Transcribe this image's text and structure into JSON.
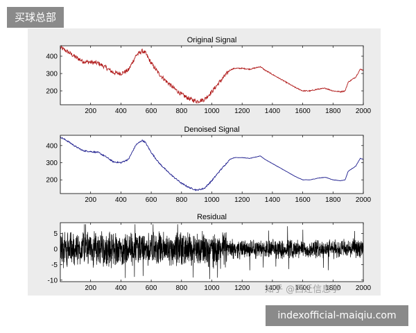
{
  "overlay": {
    "top_tag": "买球总部",
    "watermark": "知乎 @西迁信息学",
    "bottom_tag": "indexofficial-maiqiu.com"
  },
  "colors": {
    "original": "#b01818",
    "denoised": "#1a1a8c",
    "residual": "#000000",
    "figure_bg": "#ececec"
  },
  "chart_data": [
    {
      "type": "line",
      "title": "Original Signal",
      "xlim": [
        0,
        2000
      ],
      "ylim": [
        120,
        460
      ],
      "xticks": [
        200,
        400,
        600,
        800,
        1000,
        1200,
        1400,
        1600,
        1800,
        2000
      ],
      "yticks": [
        200,
        300,
        400
      ],
      "series": [
        {
          "color": "#b01818",
          "noise": 12,
          "x": [
            0,
            50,
            100,
            150,
            200,
            250,
            300,
            350,
            400,
            450,
            500,
            540,
            560,
            600,
            650,
            700,
            750,
            800,
            850,
            900,
            950,
            1000,
            1050,
            1100,
            1120,
            1150,
            1200,
            1250,
            1300,
            1320,
            1350,
            1400,
            1450,
            1500,
            1550,
            1600,
            1650,
            1700,
            1750,
            1800,
            1850,
            1880,
            1900,
            1950,
            1980,
            2000
          ],
          "y": [
            450,
            425,
            395,
            370,
            365,
            360,
            335,
            305,
            300,
            320,
            405,
            430,
            420,
            360,
            300,
            255,
            215,
            180,
            155,
            140,
            150,
            195,
            250,
            300,
            320,
            330,
            330,
            325,
            335,
            340,
            320,
            295,
            270,
            245,
            220,
            200,
            200,
            210,
            215,
            200,
            195,
            200,
            250,
            280,
            325,
            320
          ]
        }
      ]
    },
    {
      "type": "line",
      "title": "Denoised Signal",
      "xlim": [
        0,
        2000
      ],
      "ylim": [
        120,
        460
      ],
      "xticks": [
        200,
        400,
        600,
        800,
        1000,
        1200,
        1400,
        1600,
        1800,
        2000
      ],
      "yticks": [
        200,
        300,
        400
      ],
      "series": [
        {
          "color": "#1a1a8c",
          "noise": 4,
          "x": [
            0,
            50,
            100,
            150,
            200,
            250,
            300,
            350,
            400,
            450,
            500,
            540,
            560,
            600,
            650,
            700,
            750,
            800,
            850,
            900,
            950,
            1000,
            1050,
            1100,
            1120,
            1150,
            1200,
            1250,
            1300,
            1320,
            1350,
            1400,
            1450,
            1500,
            1550,
            1600,
            1650,
            1700,
            1750,
            1800,
            1850,
            1880,
            1900,
            1950,
            1980,
            2000
          ],
          "y": [
            450,
            425,
            395,
            370,
            365,
            360,
            335,
            305,
            300,
            320,
            405,
            430,
            420,
            360,
            300,
            255,
            215,
            180,
            155,
            140,
            150,
            195,
            250,
            300,
            320,
            330,
            330,
            325,
            335,
            340,
            320,
            295,
            270,
            245,
            220,
            200,
            200,
            210,
            215,
            200,
            195,
            200,
            250,
            280,
            325,
            320
          ]
        }
      ]
    },
    {
      "type": "line",
      "title": "Residual",
      "xlim": [
        0,
        2000
      ],
      "ylim": [
        -10.5,
        8.5
      ],
      "xticks": [
        200,
        400,
        600,
        800,
        1000,
        1200,
        1400,
        1600,
        1800,
        2000
      ],
      "yticks": [
        -10,
        -5,
        0,
        5
      ],
      "series": [
        {
          "color": "#000000",
          "residual": true,
          "amplitude_before_1100": 6.5,
          "amplitude_after_1100": 3.5,
          "range": [
            -10,
            8
          ]
        }
      ]
    }
  ]
}
